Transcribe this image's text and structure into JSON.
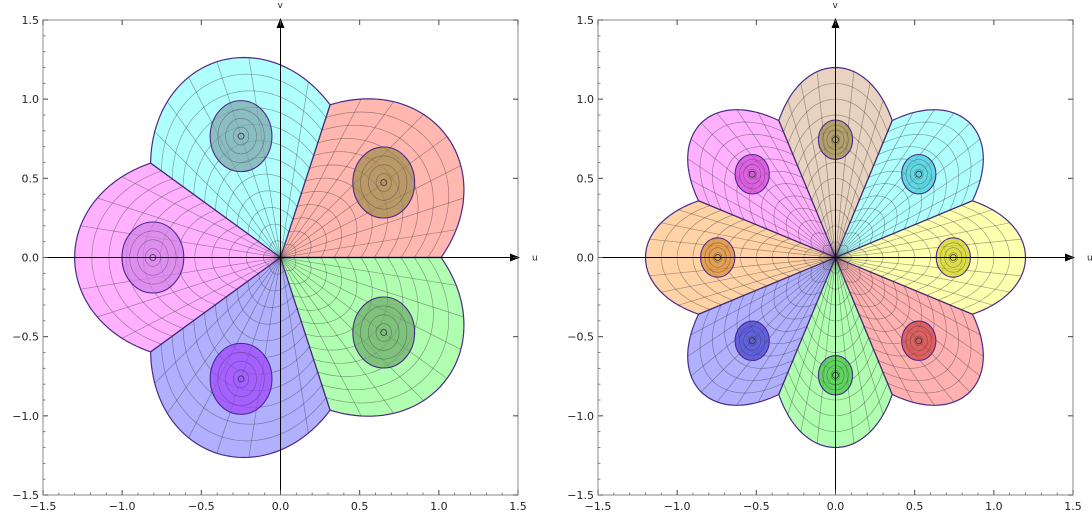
{
  "chart_data": [
    {
      "type": "conformal-map-plot",
      "petals": 5,
      "rotation_deg": 0,
      "petal_colors": [
        "#ff8a80",
        "#80ffff",
        "#ff80ff",
        "#8080ff",
        "#80ff80"
      ],
      "hole_colors": [
        "#9c8a4a",
        "#7aa3a8",
        "#d080e8",
        "#a040ff",
        "#6aa86a"
      ],
      "xlim": [
        -1.5,
        1.5
      ],
      "ylim": [
        -1.5,
        1.5
      ],
      "xticks": [
        "−1.5",
        "−1.0",
        "−0.5",
        "0.0",
        "0.5",
        "1.0",
        "1.5"
      ],
      "yticks": [
        "−1.5",
        "−1.0",
        "−0.5",
        "0.0",
        "0.5",
        "1.0",
        "1.5"
      ],
      "xlabel": "u",
      "ylabel": "v",
      "max_radius": 1.3
    },
    {
      "type": "conformal-map-plot",
      "petals": 8,
      "rotation_deg": 22.5,
      "petal_colors": [
        "#80ffff",
        "#d8b898",
        "#ff80ff",
        "#ffb870",
        "#8080ff",
        "#80ff80",
        "#ff8080",
        "#ffff80"
      ],
      "hole_colors": [
        "#40c8d8",
        "#9c8a4a",
        "#d040d8",
        "#d88a30",
        "#4040d0",
        "#40c040",
        "#d04040",
        "#d0d020"
      ],
      "xlim": [
        -1.5,
        1.5
      ],
      "ylim": [
        -1.5,
        1.5
      ],
      "xticks": [
        "−1.5",
        "−1.0",
        "−0.5",
        "0.0",
        "0.5",
        "1.0",
        "1.5"
      ],
      "yticks": [
        "−1.5",
        "−1.0",
        "−0.5",
        "0.0",
        "0.5",
        "1.0",
        "1.5"
      ],
      "xlabel": "u",
      "ylabel": "v",
      "max_radius": 1.2
    }
  ]
}
